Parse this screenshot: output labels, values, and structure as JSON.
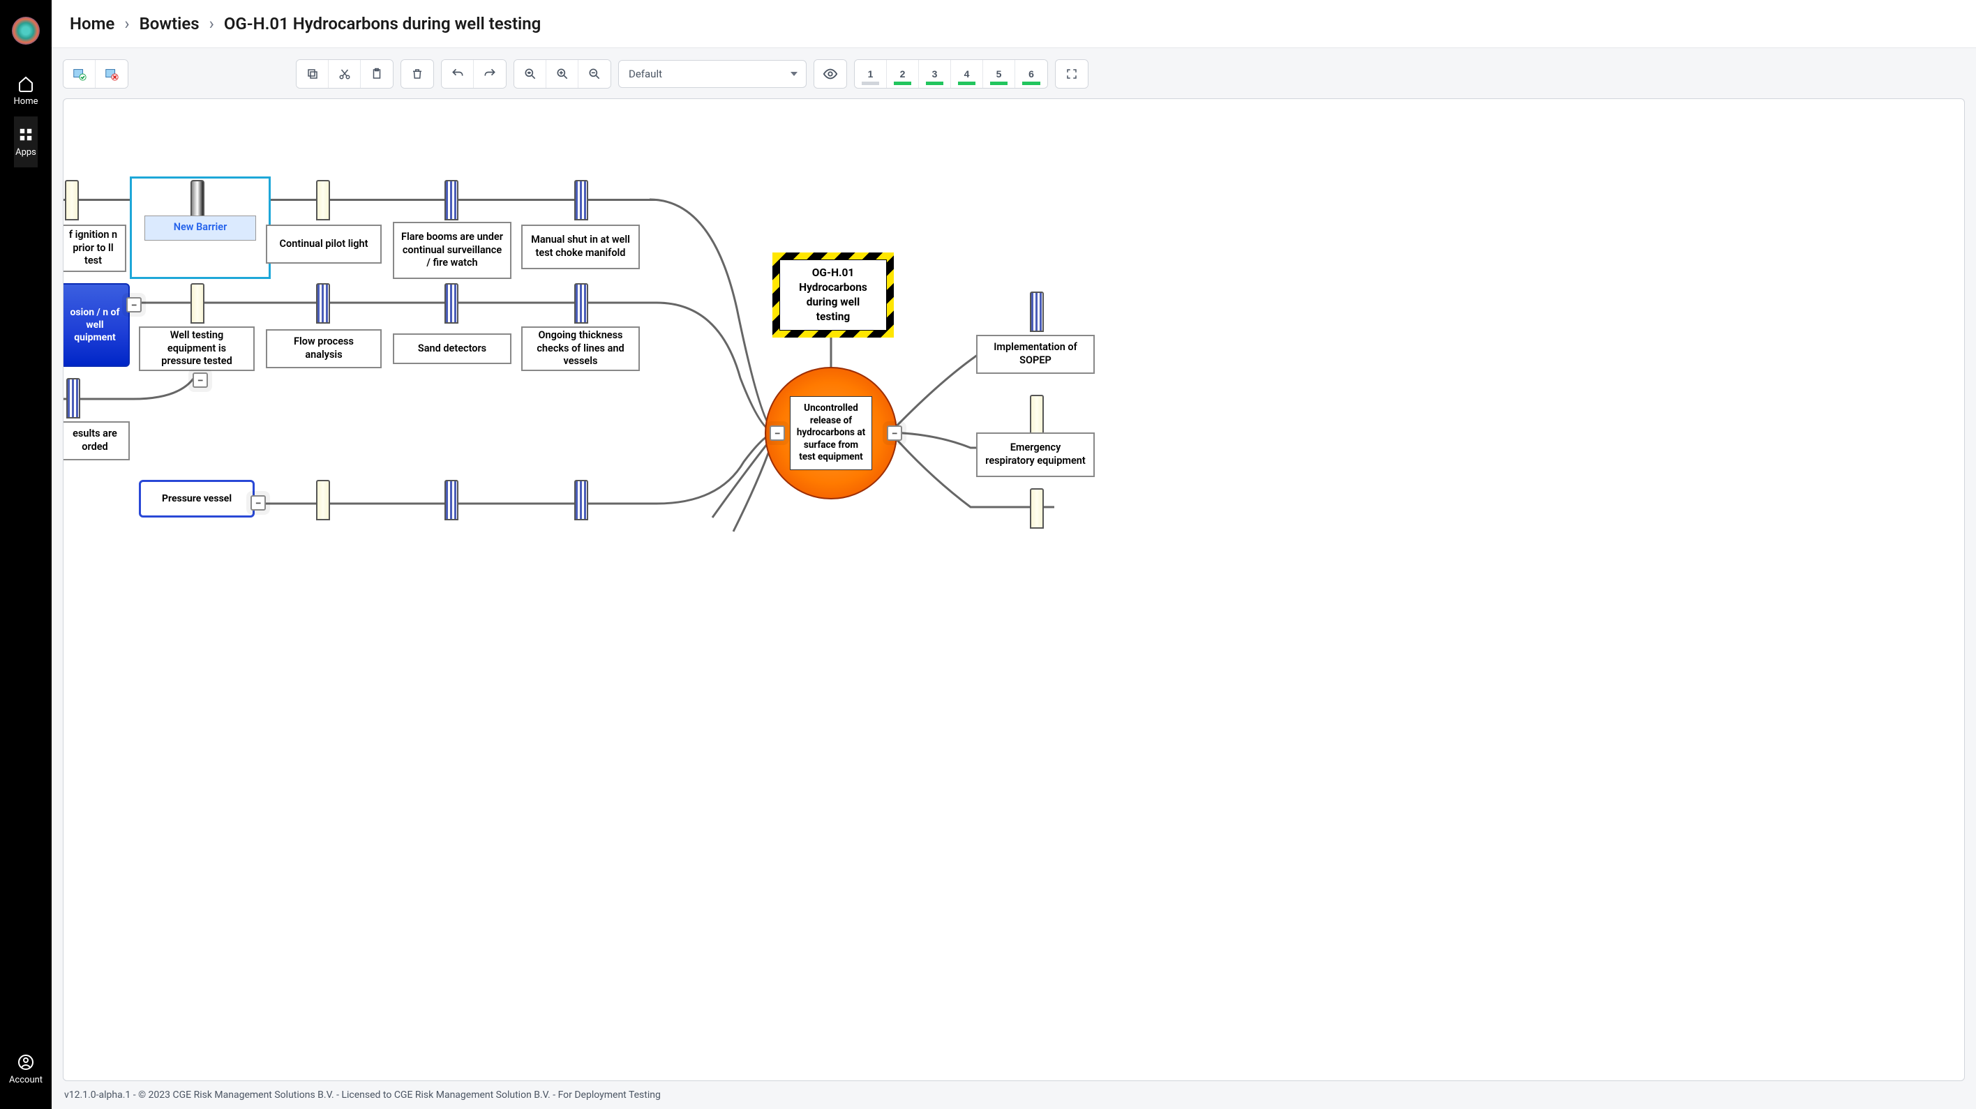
{
  "sidebar": {
    "home": "Home",
    "apps": "Apps",
    "account": "Account"
  },
  "breadcrumb": {
    "home": "Home",
    "bowties": "Bowties",
    "current": "OG-H.01 Hydrocarbons during well testing"
  },
  "toolbar": {
    "dropdown": "Default",
    "levels": [
      {
        "n": "1",
        "on": false
      },
      {
        "n": "2",
        "on": true
      },
      {
        "n": "3",
        "on": true
      },
      {
        "n": "4",
        "on": true
      },
      {
        "n": "5",
        "on": true
      },
      {
        "n": "6",
        "on": true
      }
    ]
  },
  "diagram": {
    "hazard": "OG-H.01 Hydrocarbons during well testing",
    "top_event": "Uncontrolled release of hydrocarbons at surface from test equipment",
    "row1": {
      "b0": "f ignition n prior to ll test",
      "b1": "New Barrier",
      "b2": "Continual pilot light",
      "b3": "Flare booms are under continual surveillance / fire watch",
      "b4": "Manual shut in at well test choke manifold"
    },
    "row2": {
      "threat": "osion / n of well quipment",
      "b1": "Well testing equipment is pressure tested",
      "b2": "Flow process analysis",
      "b3": "Sand detectors",
      "b4": "Ongoing thickness checks of lines and vessels"
    },
    "row3": {
      "b0": "esults are orded"
    },
    "row4": {
      "threat": "Pressure vessel"
    },
    "right": {
      "c1": "Implementation of SOPEP",
      "c2": "Emergency respiratory equipment"
    }
  },
  "footer": "v12.1.0-alpha.1 - © 2023 CGE Risk Management Solutions B.V. - Licensed to CGE Risk Management Solution B.V. - For Deployment Testing"
}
